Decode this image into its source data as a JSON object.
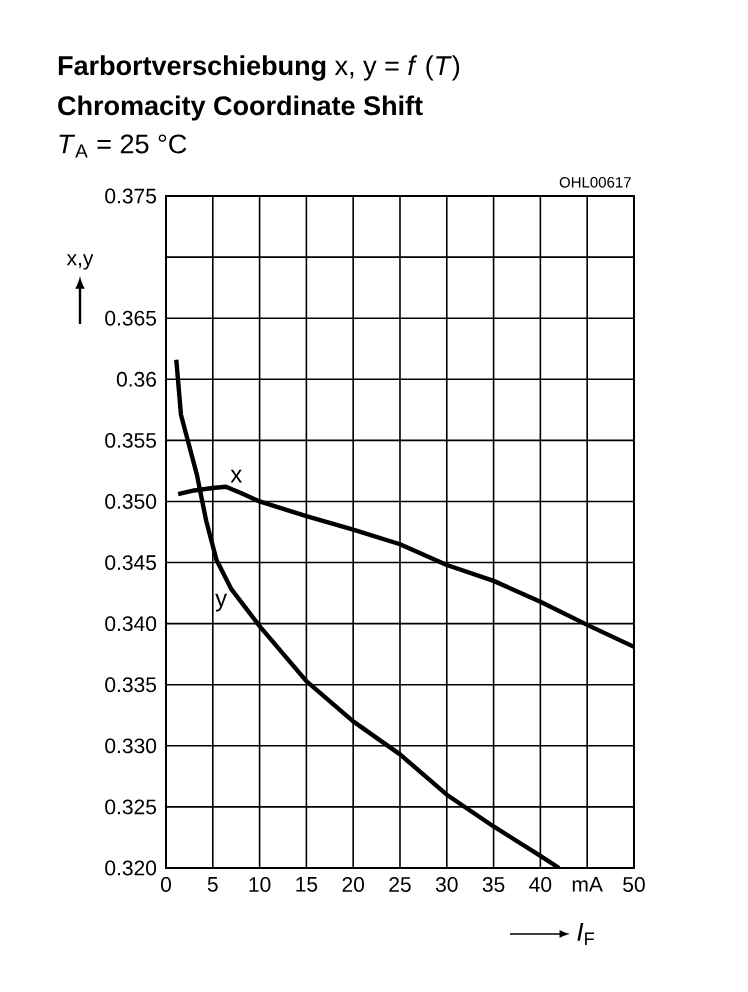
{
  "chart_data": {
    "type": "line",
    "title": "**Farbortverschiebung** x, y = *f* (*T*)",
    "subtitle": "Chromacity Coordinate Shift",
    "xlabel": "*I*$_{F}$",
    "ylabel": "x,y",
    "annotations": [
      "*T*$_{A}$ = 25 °C",
      "OHL00617"
    ],
    "series": [
      {
        "name": "x",
        "color": "#000000",
        "x": [
          1.3,
          3,
          5,
          6.4,
          8,
          10,
          15,
          20,
          25,
          30,
          35,
          40,
          45,
          50
        ],
        "values": [
          0.3506,
          0.3509,
          0.3511,
          0.3512,
          0.3507,
          0.35,
          0.3488,
          0.3477,
          0.3465,
          0.3448,
          0.3435,
          0.3418,
          0.3399,
          0.3381
        ]
      },
      {
        "name": "y",
        "color": "#000000",
        "x": [
          1.1,
          1.6,
          2.5,
          3.3,
          4.3,
          5.4,
          7,
          10,
          15,
          20,
          25,
          30,
          35,
          40,
          42
        ],
        "values": [
          0.3616,
          0.3571,
          0.3545,
          0.3522,
          0.3484,
          0.3452,
          0.3428,
          0.3398,
          0.3353,
          0.332,
          0.3293,
          0.326,
          0.3234,
          0.321,
          0.32
        ]
      }
    ],
    "xlim": [
      0,
      50
    ],
    "ylim": [
      0.32,
      0.375
    ],
    "xticks": [
      0,
      5,
      10,
      15,
      20,
      25,
      30,
      35,
      40,
      {
        "value": 45,
        "label": "mA"
      },
      50
    ],
    "yticks": [
      {
        "value": 0.32,
        "label": "0.320"
      },
      0.325,
      {
        "value": 0.33,
        "label": "0.330"
      },
      0.335,
      {
        "value": 0.34,
        "label": "0.340"
      },
      0.345,
      {
        "value": 0.35,
        "label": "0.350"
      },
      0.355,
      0.36,
      0.365,
      {
        "value": 0.37,
        "label": null
      },
      0.375
    ],
    "grid": true,
    "legend": false,
    "marker": "none",
    "line_style": "solid"
  }
}
